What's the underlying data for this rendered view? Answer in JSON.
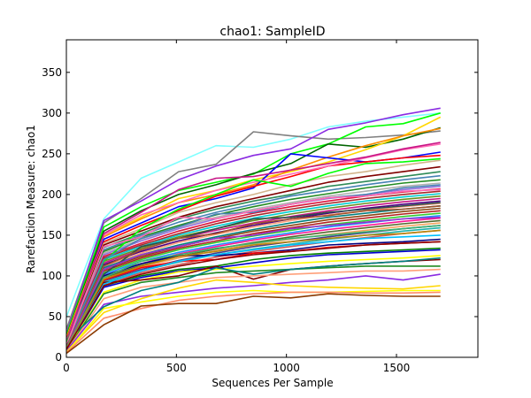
{
  "chart_data": {
    "type": "line",
    "title": "chao1: SampleID",
    "xlabel": "Sequences Per Sample",
    "ylabel": "Rarefaction Measure: chao1",
    "xlim": [
      0,
      1870
    ],
    "ylim": [
      0,
      390
    ],
    "x_ticks": [
      0,
      500,
      1000,
      1500
    ],
    "y_ticks": [
      0,
      50,
      100,
      150,
      200,
      250,
      300,
      350
    ],
    "grid": false,
    "legend": "none",
    "x": [
      1,
      170,
      340,
      510,
      680,
      850,
      1020,
      1190,
      1360,
      1530,
      1700
    ],
    "series": [
      {
        "color": "#80ffff",
        "values": [
          50,
          170,
          220,
          240,
          260,
          258,
          268,
          283,
          290,
          295,
          300
        ]
      },
      {
        "color": "#808080",
        "values": [
          35,
          165,
          195,
          228,
          237,
          277,
          272,
          268,
          270,
          273,
          278
        ]
      },
      {
        "color": "#8a2be2",
        "values": [
          30,
          168,
          192,
          218,
          235,
          248,
          256,
          280,
          288,
          298,
          306
        ]
      },
      {
        "color": "#00ff00",
        "values": [
          28,
          160,
          185,
          205,
          215,
          225,
          250,
          262,
          283,
          287,
          300
        ]
      },
      {
        "color": "#006400",
        "values": [
          26,
          155,
          180,
          200,
          212,
          226,
          238,
          262,
          258,
          268,
          282
        ]
      },
      {
        "color": "#ffd700",
        "values": [
          25,
          150,
          172,
          195,
          205,
          218,
          228,
          240,
          255,
          272,
          295
        ]
      },
      {
        "color": "#ff8c00",
        "values": [
          24,
          148,
          170,
          190,
          200,
          212,
          230,
          246,
          260,
          272,
          281
        ]
      },
      {
        "color": "#0000ff",
        "values": [
          22,
          145,
          165,
          185,
          195,
          208,
          250,
          245,
          240,
          245,
          252
        ]
      },
      {
        "color": "#ff0000",
        "values": [
          22,
          142,
          162,
          180,
          198,
          210,
          222,
          235,
          240,
          245,
          248
        ]
      },
      {
        "color": "#ff69b4",
        "values": [
          20,
          150,
          175,
          190,
          205,
          215,
          225,
          235,
          245,
          255,
          262
        ]
      },
      {
        "color": "#d2b48c",
        "values": [
          21,
          140,
          158,
          178,
          190,
          200,
          212,
          222,
          228,
          236,
          242
        ]
      },
      {
        "color": "#800000",
        "values": [
          20,
          138,
          155,
          172,
          185,
          195,
          205,
          215,
          222,
          228,
          234
        ]
      },
      {
        "color": "#2e8b57",
        "values": [
          19,
          135,
          152,
          170,
          182,
          192,
          200,
          210,
          216,
          222,
          228
        ]
      },
      {
        "color": "#4682b4",
        "values": [
          20,
          132,
          150,
          166,
          178,
          188,
          198,
          205,
          212,
          218,
          223
        ]
      },
      {
        "color": "#228b22",
        "values": [
          18,
          130,
          148,
          162,
          175,
          185,
          194,
          201,
          208,
          214,
          218
        ]
      },
      {
        "color": "#b0b0b0",
        "values": [
          18,
          128,
          145,
          160,
          172,
          182,
          190,
          198,
          204,
          210,
          214
        ]
      },
      {
        "color": "#9370db",
        "values": [
          17,
          126,
          143,
          158,
          170,
          180,
          188,
          195,
          200,
          206,
          210
        ]
      },
      {
        "color": "#dc143c",
        "values": [
          17,
          124,
          140,
          155,
          167,
          177,
          185,
          192,
          198,
          203,
          207
        ]
      },
      {
        "color": "#a52a2a",
        "values": [
          16,
          122,
          138,
          152,
          164,
          174,
          182,
          189,
          195,
          200,
          204
        ]
      },
      {
        "color": "#00ced1",
        "values": [
          16,
          120,
          136,
          150,
          161,
          171,
          179,
          186,
          192,
          197,
          201
        ]
      },
      {
        "color": "#6b8e23",
        "values": [
          15,
          118,
          134,
          148,
          158,
          168,
          176,
          183,
          189,
          194,
          198
        ]
      },
      {
        "color": "#c71585",
        "values": [
          15,
          116,
          132,
          146,
          156,
          165,
          173,
          180,
          186,
          191,
          195
        ]
      },
      {
        "color": "#4b0082",
        "values": [
          15,
          114,
          130,
          143,
          153,
          162,
          170,
          177,
          183,
          188,
          192
        ]
      },
      {
        "color": "#ffa07a",
        "values": [
          14,
          112,
          128,
          141,
          151,
          160,
          168,
          175,
          180,
          185,
          189
        ]
      },
      {
        "color": "#008080",
        "values": [
          14,
          110,
          126,
          138,
          148,
          157,
          165,
          172,
          177,
          182,
          186
        ]
      },
      {
        "color": "#8b4513",
        "values": [
          14,
          108,
          124,
          136,
          146,
          155,
          162,
          169,
          174,
          179,
          183
        ]
      },
      {
        "color": "#b22222",
        "values": [
          13,
          106,
          122,
          134,
          143,
          152,
          159,
          166,
          171,
          176,
          180
        ]
      },
      {
        "color": "#32cd32",
        "values": [
          13,
          104,
          120,
          132,
          141,
          149,
          156,
          163,
          168,
          173,
          177
        ]
      },
      {
        "color": "#1e90ff",
        "values": [
          13,
          102,
          118,
          129,
          138,
          146,
          153,
          160,
          165,
          170,
          174
        ]
      },
      {
        "color": "#ff1493",
        "values": [
          12,
          100,
          115,
          127,
          136,
          144,
          151,
          157,
          162,
          167,
          171
        ]
      },
      {
        "color": "#556b2f",
        "values": [
          12,
          98,
          113,
          124,
          133,
          141,
          148,
          154,
          159,
          164,
          168
        ]
      },
      {
        "color": "#f4a460",
        "values": [
          12,
          96,
          111,
          122,
          131,
          139,
          145,
          151,
          156,
          161,
          165
        ]
      },
      {
        "color": "#483d8b",
        "values": [
          11,
          94,
          108,
          119,
          128,
          136,
          142,
          148,
          153,
          158,
          162
        ]
      },
      {
        "color": "#20b2aa",
        "values": [
          11,
          92,
          106,
          117,
          126,
          133,
          139,
          145,
          150,
          155,
          159
        ]
      },
      {
        "color": "#cd5c5c",
        "values": [
          11,
          90,
          104,
          114,
          123,
          130,
          136,
          142,
          147,
          152,
          156
        ]
      },
      {
        "color": "#000080",
        "values": [
          10,
          100,
          115,
          125,
          125,
          128,
          132,
          138,
          140,
          142,
          145
        ]
      },
      {
        "color": "#ff0000",
        "values": [
          10,
          95,
          110,
          118,
          120,
          128,
          130,
          135,
          138,
          140,
          142
        ]
      },
      {
        "color": "#008000",
        "values": [
          10,
          88,
          100,
          108,
          112,
          120,
          125,
          128,
          130,
          132,
          134
        ]
      },
      {
        "color": "#0000cd",
        "values": [
          9,
          86,
          98,
          106,
          110,
          116,
          122,
          126,
          128,
          130,
          132
        ]
      },
      {
        "color": "#ffff00",
        "values": [
          9,
          80,
          95,
          105,
          108,
          112,
          115,
          118,
          120,
          122,
          125
        ]
      },
      {
        "color": "#800000",
        "values": [
          9,
          92,
          95,
          100,
          112,
          96,
          108,
          112,
          115,
          118,
          120
        ]
      },
      {
        "color": "#228b22",
        "values": [
          8,
          78,
          92,
          98,
          104,
          106,
          108,
          110,
          112,
          112,
          112
        ]
      },
      {
        "color": "#ffa07a",
        "values": [
          8,
          72,
          86,
          92,
          98,
          100,
          102,
          104,
          106,
          106,
          108
        ]
      },
      {
        "color": "#8a2be2",
        "values": [
          8,
          65,
          75,
          80,
          85,
          88,
          92,
          95,
          100,
          95,
          102
        ]
      },
      {
        "color": "#ffd700",
        "values": [
          7,
          55,
          72,
          85,
          95,
          92,
          88,
          86,
          85,
          84,
          88
        ]
      },
      {
        "color": "#ffff00",
        "values": [
          6,
          60,
          68,
          75,
          80,
          82,
          80,
          80,
          81,
          82,
          82
        ]
      },
      {
        "color": "#ff8c69",
        "values": [
          6,
          48,
          60,
          70,
          75,
          78,
          80,
          80,
          79,
          79,
          80
        ]
      },
      {
        "color": "#8b3a00",
        "values": [
          5,
          40,
          63,
          66,
          66,
          75,
          73,
          78,
          76,
          75,
          75
        ]
      },
      {
        "color": "#008080",
        "values": [
          20,
          62,
          82,
          92,
          110,
          102,
          108,
          112,
          115,
          118,
          122
        ]
      },
      {
        "color": "#c71585",
        "values": [
          18,
          152,
          178,
          206,
          220,
          222,
          230,
          238,
          246,
          256,
          264
        ]
      },
      {
        "color": "#00ff00",
        "values": [
          18,
          118,
          158,
          182,
          200,
          218,
          210,
          226,
          238,
          240,
          244
        ]
      },
      {
        "color": "#4682b4",
        "values": [
          16,
          120,
          146,
          160,
          176,
          178,
          188,
          196,
          200,
          208,
          212
        ]
      },
      {
        "color": "#ff69b4",
        "values": [
          15,
          136,
          148,
          172,
          170,
          180,
          188,
          196,
          198,
          204,
          206
        ]
      },
      {
        "color": "#2f4f4f",
        "values": [
          14,
          102,
          136,
          146,
          158,
          170,
          172,
          178,
          182,
          186,
          190
        ]
      },
      {
        "color": "#a0522d",
        "values": [
          13,
          112,
          132,
          146,
          152,
          164,
          170,
          174,
          180,
          182,
          186
        ]
      },
      {
        "color": "#9932cc",
        "values": [
          12,
          108,
          126,
          136,
          146,
          150,
          158,
          162,
          166,
          170,
          172
        ]
      },
      {
        "color": "#3cb371",
        "values": [
          12,
          98,
          118,
          126,
          134,
          140,
          146,
          150,
          154,
          158,
          162
        ]
      },
      {
        "color": "#b8860b",
        "values": [
          11,
          96,
          112,
          124,
          130,
          138,
          142,
          146,
          150,
          152,
          156
        ]
      },
      {
        "color": "#00bfff",
        "values": [
          10,
          90,
          106,
          118,
          126,
          132,
          138,
          142,
          146,
          148,
          150
        ]
      },
      {
        "color": "#8b0000",
        "values": [
          10,
          88,
          102,
          112,
          120,
          126,
          130,
          134,
          138,
          140,
          142
        ]
      }
    ]
  }
}
